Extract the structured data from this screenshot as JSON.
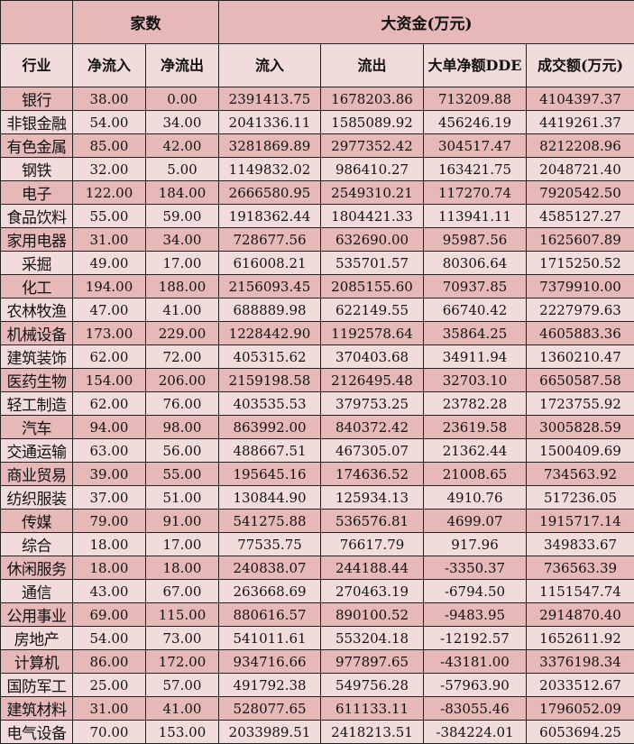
{
  "header": {
    "group_count": "家数",
    "group_big_money": "大资金(万元)",
    "columns": [
      "行业",
      "净流入",
      "净流出",
      "流入",
      "流出",
      "大单净额DDE",
      "成交额(万元)"
    ]
  },
  "colors": {
    "dark_row": "#e6b8b8",
    "light_row": "#f2dcdb"
  },
  "rows": [
    [
      "银行",
      "38.00",
      "0.00",
      "2391413.75",
      "1678203.86",
      "713209.88",
      "4104397.37"
    ],
    [
      "非银金融",
      "54.00",
      "34.00",
      "2041336.11",
      "1585089.92",
      "456246.19",
      "4419261.37"
    ],
    [
      "有色金属",
      "85.00",
      "42.00",
      "3281869.89",
      "2977352.42",
      "304517.47",
      "8212208.96"
    ],
    [
      "钢铁",
      "32.00",
      "5.00",
      "1149832.02",
      "986410.27",
      "163421.75",
      "2048721.40"
    ],
    [
      "电子",
      "122.00",
      "184.00",
      "2666580.95",
      "2549310.21",
      "117270.74",
      "7920542.50"
    ],
    [
      "食品饮料",
      "55.00",
      "59.00",
      "1918362.44",
      "1804421.33",
      "113941.11",
      "4585127.27"
    ],
    [
      "家用电器",
      "31.00",
      "34.00",
      "728677.56",
      "632690.00",
      "95987.56",
      "1625607.89"
    ],
    [
      "采掘",
      "49.00",
      "17.00",
      "616008.21",
      "535701.57",
      "80306.64",
      "1715250.52"
    ],
    [
      "化工",
      "194.00",
      "188.00",
      "2156093.45",
      "2085155.60",
      "70937.85",
      "7379910.00"
    ],
    [
      "农林牧渔",
      "47.00",
      "41.00",
      "688889.98",
      "622149.55",
      "66740.42",
      "2227979.63"
    ],
    [
      "机械设备",
      "173.00",
      "229.00",
      "1228442.90",
      "1192578.64",
      "35864.25",
      "4605883.36"
    ],
    [
      "建筑装饰",
      "62.00",
      "72.00",
      "405315.62",
      "370403.68",
      "34911.94",
      "1360210.47"
    ],
    [
      "医药生物",
      "154.00",
      "206.00",
      "2159198.58",
      "2126495.48",
      "32703.10",
      "6650587.58"
    ],
    [
      "轻工制造",
      "62.00",
      "76.00",
      "403535.53",
      "379753.25",
      "23782.28",
      "1723755.92"
    ],
    [
      "汽车",
      "94.00",
      "98.00",
      "863992.00",
      "840372.42",
      "23619.58",
      "3005828.59"
    ],
    [
      "交通运输",
      "63.00",
      "56.00",
      "488667.51",
      "467305.07",
      "21362.44",
      "1500409.69"
    ],
    [
      "商业贸易",
      "39.00",
      "55.00",
      "195645.16",
      "174636.52",
      "21008.65",
      "734563.92"
    ],
    [
      "纺织服装",
      "37.00",
      "51.00",
      "130844.90",
      "125934.13",
      "4910.76",
      "517236.05"
    ],
    [
      "传媒",
      "79.00",
      "91.00",
      "541275.88",
      "536576.81",
      "4699.07",
      "1915717.14"
    ],
    [
      "综合",
      "18.00",
      "17.00",
      "77535.75",
      "76617.79",
      "917.96",
      "349833.67"
    ],
    [
      "休闲服务",
      "18.00",
      "18.00",
      "240838.07",
      "244188.44",
      "-3350.37",
      "736563.39"
    ],
    [
      "通信",
      "43.00",
      "67.00",
      "263668.69",
      "270463.19",
      "-6794.50",
      "1151547.74"
    ],
    [
      "公用事业",
      "69.00",
      "115.00",
      "880616.57",
      "890100.52",
      "-9483.95",
      "2914870.40"
    ],
    [
      "房地产",
      "54.00",
      "73.00",
      "541011.61",
      "553204.18",
      "-12192.57",
      "1652611.92"
    ],
    [
      "计算机",
      "86.00",
      "172.00",
      "934716.66",
      "977897.65",
      "-43181.00",
      "3376198.34"
    ],
    [
      "国防军工",
      "25.00",
      "57.00",
      "491792.38",
      "549756.28",
      "-57963.90",
      "2033512.67"
    ],
    [
      "建筑材料",
      "31.00",
      "41.00",
      "528077.65",
      "611133.11",
      "-83055.46",
      "1796052.09"
    ],
    [
      "电气设备",
      "70.00",
      "153.00",
      "2033989.51",
      "2418213.51",
      "-384224.01",
      "6053694.25"
    ]
  ]
}
